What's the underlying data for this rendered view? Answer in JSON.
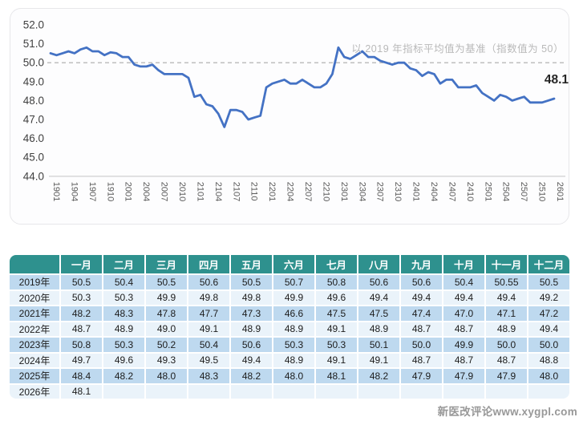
{
  "chart_data": {
    "type": "line",
    "title": "",
    "annotation": "以 2019 年指标平均值为基准（指数值为 50）",
    "end_label": "48.1",
    "x_ticklabels": [
      "1901",
      "1904",
      "1907",
      "1910",
      "2001",
      "2004",
      "2007",
      "2010",
      "2101",
      "2104",
      "2107",
      "2110",
      "2201",
      "2204",
      "2207",
      "2210",
      "2301",
      "2304",
      "2307",
      "2310",
      "2401",
      "2404",
      "2407",
      "2410",
      "2501",
      "2504",
      "2507",
      "2510",
      "2601"
    ],
    "x_tick_interval_points": 3,
    "values": [
      50.5,
      50.4,
      50.5,
      50.6,
      50.5,
      50.7,
      50.8,
      50.6,
      50.6,
      50.4,
      50.55,
      50.5,
      50.3,
      50.3,
      49.9,
      49.8,
      49.8,
      49.9,
      49.6,
      49.4,
      49.4,
      49.4,
      49.4,
      49.2,
      48.2,
      48.3,
      47.8,
      47.7,
      47.3,
      46.6,
      47.5,
      47.5,
      47.4,
      47.0,
      47.1,
      47.2,
      48.7,
      48.9,
      49.0,
      49.1,
      48.9,
      48.9,
      49.1,
      48.9,
      48.7,
      48.7,
      48.9,
      49.4,
      50.8,
      50.3,
      50.2,
      50.4,
      50.6,
      50.3,
      50.3,
      50.1,
      50.0,
      49.9,
      50.0,
      50.0,
      49.7,
      49.6,
      49.3,
      49.5,
      49.4,
      48.9,
      49.1,
      49.1,
      48.7,
      48.7,
      48.7,
      48.8,
      48.4,
      48.2,
      48.0,
      48.3,
      48.2,
      48.0,
      48.1,
      48.2,
      47.9,
      47.9,
      47.9,
      48.0,
      48.1
    ],
    "ylim": [
      44.0,
      52.0
    ],
    "y_ticks": [
      "52.0",
      "51.0",
      "50.0",
      "49.0",
      "48.0",
      "47.0",
      "46.0",
      "45.0",
      "44.0"
    ],
    "reference_line_y": 50.0,
    "grid": "dashed horizontal reference line at 50 only",
    "legend": "none",
    "colors": {
      "line": "#4472c4",
      "reference_dash": "#a9a9a9",
      "annotation_text": "#b9b9b9",
      "end_label_text": "#262626"
    }
  },
  "table": {
    "columns": [
      "",
      "一月",
      "二月",
      "三月",
      "四月",
      "五月",
      "六月",
      "七月",
      "八月",
      "九月",
      "十月",
      "十一月",
      "十二月"
    ],
    "rows": [
      {
        "label": "2019年",
        "values": [
          "50.5",
          "50.4",
          "50.5",
          "50.6",
          "50.5",
          "50.7",
          "50.8",
          "50.6",
          "50.6",
          "50.4",
          "50.55",
          "50.5"
        ]
      },
      {
        "label": "2020年",
        "values": [
          "50.3",
          "50.3",
          "49.9",
          "49.8",
          "49.8",
          "49.9",
          "49.6",
          "49.4",
          "49.4",
          "49.4",
          "49.4",
          "49.2"
        ]
      },
      {
        "label": "2021年",
        "values": [
          "48.2",
          "48.3",
          "47.8",
          "47.7",
          "47.3",
          "46.6",
          "47.5",
          "47.5",
          "47.4",
          "47.0",
          "47.1",
          "47.2"
        ]
      },
      {
        "label": "2022年",
        "values": [
          "48.7",
          "48.9",
          "49.0",
          "49.1",
          "48.9",
          "48.9",
          "49.1",
          "48.9",
          "48.7",
          "48.7",
          "48.9",
          "49.4"
        ]
      },
      {
        "label": "2023年",
        "values": [
          "50.8",
          "50.3",
          "50.2",
          "50.4",
          "50.6",
          "50.3",
          "50.3",
          "50.1",
          "50.0",
          "49.9",
          "50.0",
          "50.0"
        ]
      },
      {
        "label": "2024年",
        "values": [
          "49.7",
          "49.6",
          "49.3",
          "49.5",
          "49.4",
          "48.9",
          "49.1",
          "49.1",
          "48.7",
          "48.7",
          "48.7",
          "48.8"
        ]
      },
      {
        "label": "2025年",
        "values": [
          "48.4",
          "48.2",
          "48.0",
          "48.3",
          "48.2",
          "48.0",
          "48.1",
          "48.2",
          "47.9",
          "47.9",
          "47.9",
          "48.0"
        ]
      },
      {
        "label": "2026年",
        "values": [
          "48.1",
          "",
          "",
          "",
          "",
          "",
          "",
          "",
          "",
          "",
          "",
          ""
        ]
      }
    ],
    "colors": {
      "header_bg": "#2e918e",
      "header_text": "#ffffff",
      "row_odd_bg": "#bed9ef",
      "row_even_bg": "#eaf3fa",
      "cell_text": "#1c1c1c"
    }
  },
  "watermark": "新医改评论www.xygpl.com"
}
